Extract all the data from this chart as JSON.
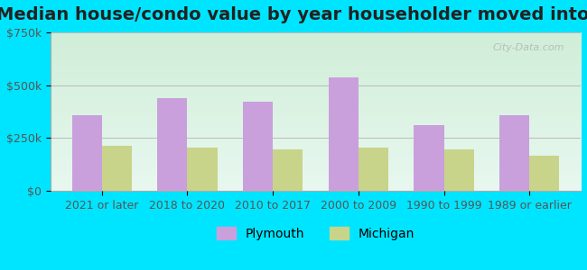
{
  "title": "Median house/condo value by year householder moved into unit",
  "categories": [
    "2021 or later",
    "2018 to 2020",
    "2010 to 2017",
    "2000 to 2009",
    "1990 to 1999",
    "1989 or earlier"
  ],
  "plymouth_values": [
    360000,
    440000,
    420000,
    535000,
    310000,
    360000
  ],
  "michigan_values": [
    215000,
    205000,
    195000,
    205000,
    195000,
    165000
  ],
  "plymouth_color": "#c9a0dc",
  "michigan_color": "#c8d48a",
  "background_outer": "#00e5ff",
  "background_inner_top": "#e8f8f0",
  "background_inner_bottom": "#d8f0e8",
  "ylim": [
    0,
    750000
  ],
  "yticks": [
    0,
    250000,
    500000,
    750000
  ],
  "ytick_labels": [
    "$0",
    "$250k",
    "$500k",
    "$750k"
  ],
  "legend_labels": [
    "Plymouth",
    "Michigan"
  ],
  "bar_width": 0.35,
  "title_fontsize": 14,
  "axis_label_fontsize": 9,
  "legend_fontsize": 10,
  "watermark": "City-Data.com"
}
